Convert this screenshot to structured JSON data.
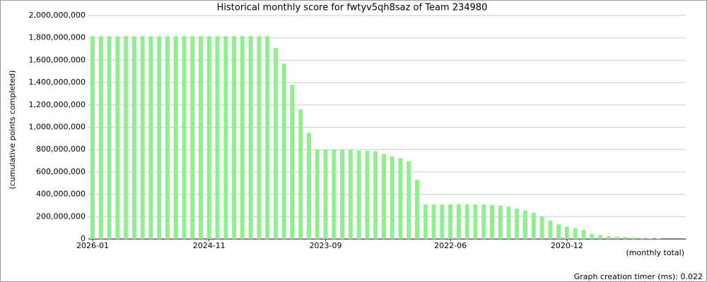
{
  "chart_data": {
    "type": "bar",
    "title": "Historical monthly score for fwtyv5qh8saz of Team 234980",
    "y_label": "(cumulative points completed)",
    "x_label": "(monthly total)",
    "footer": "Graph creation timer (ms): 0.022",
    "color": "#90ee90",
    "grid": true,
    "categories": [
      "2026-01",
      null,
      null,
      null,
      null,
      null,
      null,
      null,
      null,
      null,
      null,
      null,
      null,
      null,
      "2024-11",
      null,
      null,
      null,
      null,
      null,
      null,
      null,
      null,
      null,
      null,
      null,
      null,
      null,
      "2023-09",
      null,
      null,
      null,
      null,
      null,
      null,
      null,
      null,
      null,
      null,
      null,
      null,
      null,
      null,
      "2022-06",
      null,
      null,
      null,
      null,
      null,
      null,
      null,
      null,
      null,
      null,
      null,
      null,
      null,
      "2020-12",
      null,
      null,
      null,
      null,
      null,
      null,
      null,
      null,
      null,
      null,
      null
    ],
    "values": [
      1815000000,
      1815000000,
      1815000000,
      1815000000,
      1815000000,
      1815000000,
      1815000000,
      1815000000,
      1815000000,
      1815000000,
      1815000000,
      1815000000,
      1815000000,
      1815000000,
      1815000000,
      1815000000,
      1815000000,
      1815000000,
      1815000000,
      1815000000,
      1815000000,
      1815000000,
      1710000000,
      1570000000,
      1380000000,
      1160000000,
      950000000,
      800000000,
      800000000,
      800000000,
      800000000,
      800000000,
      790000000,
      790000000,
      785000000,
      760000000,
      740000000,
      725000000,
      695000000,
      530000000,
      310000000,
      310000000,
      310000000,
      310000000,
      310000000,
      310000000,
      310000000,
      308000000,
      305000000,
      300000000,
      290000000,
      272000000,
      255000000,
      235000000,
      200000000,
      165000000,
      132000000,
      110000000,
      97000000,
      82000000,
      45000000,
      35000000,
      25000000,
      22000000,
      18000000,
      12000000,
      8000000,
      5000000,
      3000000
    ],
    "ylim": [
      0,
      2000000000
    ],
    "yticks": [
      0,
      {
        "value": 200000000,
        "label": "200,000,000"
      },
      {
        "value": 400000000,
        "label": "400,000,000"
      },
      {
        "value": 600000000,
        "label": "600,000,000"
      },
      {
        "value": 800000000,
        "label": "800,000,000"
      },
      {
        "value": 1000000000,
        "label": "1,000,000,000"
      },
      {
        "value": 1200000000,
        "label": "1,200,000,000"
      },
      {
        "value": 1400000000,
        "label": "1,400,000,000"
      },
      {
        "value": 1600000000,
        "label": "1,600,000,000"
      },
      {
        "value": 1800000000,
        "label": "1,800,000,000"
      },
      {
        "value": 2000000000,
        "label": "2,000,000,000"
      }
    ]
  }
}
